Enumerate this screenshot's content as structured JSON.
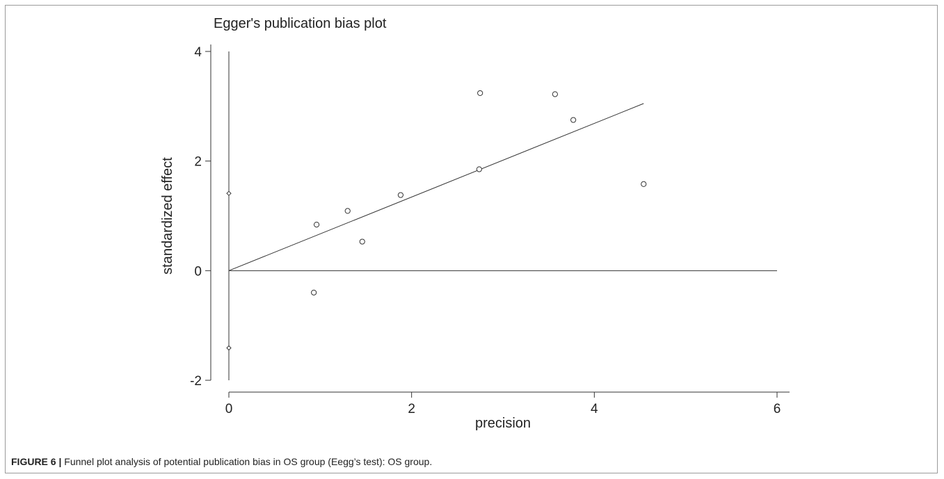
{
  "caption": {
    "label": "FIGURE 6 |",
    "text": "Funnel plot analysis of potential publication bias in OS group (Eegg’s test): OS group."
  },
  "chart_data": {
    "type": "scatter",
    "title": "Egger's publication bias plot",
    "xlabel": "precision",
    "ylabel": "standardized effect",
    "xlim": [
      0,
      6
    ],
    "ylim": [
      -2,
      4
    ],
    "xticks": [
      0,
      2,
      4,
      6
    ],
    "yticks": [
      -2,
      0,
      2,
      4
    ],
    "xtick_labels": [
      "0",
      "2",
      "4",
      "6"
    ],
    "ytick_labels": [
      "-2",
      "0",
      "2",
      "4"
    ],
    "grid": false,
    "series": [
      {
        "marker": "circle",
        "points": [
          {
            "x": 0.93,
            "y": -0.4
          },
          {
            "x": 0.96,
            "y": 0.84
          },
          {
            "x": 1.3,
            "y": 1.09
          },
          {
            "x": 1.46,
            "y": 0.53
          },
          {
            "x": 1.88,
            "y": 1.38
          },
          {
            "x": 2.74,
            "y": 1.85
          },
          {
            "x": 2.75,
            "y": 3.24
          },
          {
            "x": 3.57,
            "y": 3.22
          },
          {
            "x": 3.77,
            "y": 2.75
          },
          {
            "x": 4.54,
            "y": 1.58
          }
        ]
      },
      {
        "marker": "diamond",
        "points": [
          {
            "x": 0,
            "y": 1.41
          },
          {
            "x": 0,
            "y": -1.41
          }
        ]
      }
    ],
    "reference_lines": [
      {
        "type": "regression",
        "from": [
          0,
          0
        ],
        "to": [
          4.54,
          3.05
        ]
      },
      {
        "type": "horizontal",
        "y": 0,
        "from_x": 0,
        "to_x": 6
      },
      {
        "type": "vertical",
        "x": 0,
        "from_y": -2,
        "to_y": 4
      }
    ]
  }
}
